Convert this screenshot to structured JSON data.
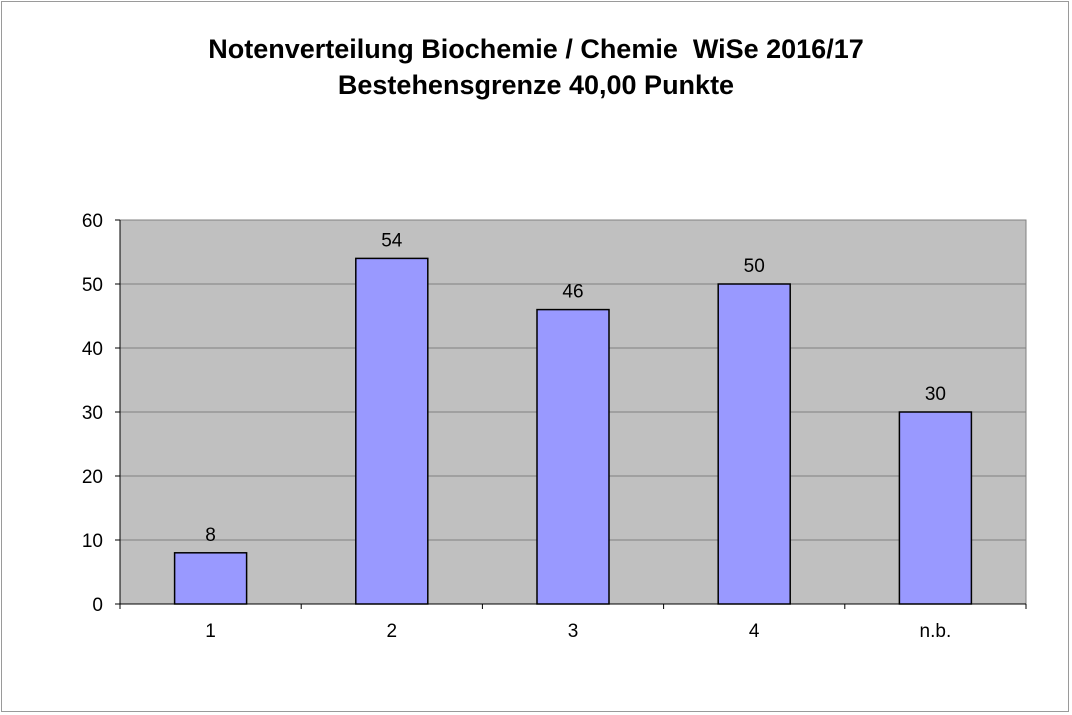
{
  "chart_data": {
    "type": "bar",
    "title": "Notenverteilung Biochemie / Chemie  WiSe 2016/17",
    "subtitle": "Bestehensgrenze 40,00 Punkte",
    "categories": [
      "1",
      "2",
      "3",
      "4",
      "n.b."
    ],
    "values": [
      8,
      54,
      46,
      50,
      30
    ],
    "data_labels": [
      "8",
      "54",
      "46",
      "50",
      "30"
    ],
    "y_ticks": [
      "0",
      "10",
      "20",
      "30",
      "40",
      "50",
      "60"
    ],
    "ylim": [
      0,
      60
    ],
    "y_step": 10,
    "grid": true,
    "legend": false,
    "colors": {
      "bar_fill": "#9999ff",
      "bar_stroke": "#000000",
      "plot_background": "#c0c0c0",
      "gridline": "#808080"
    }
  }
}
